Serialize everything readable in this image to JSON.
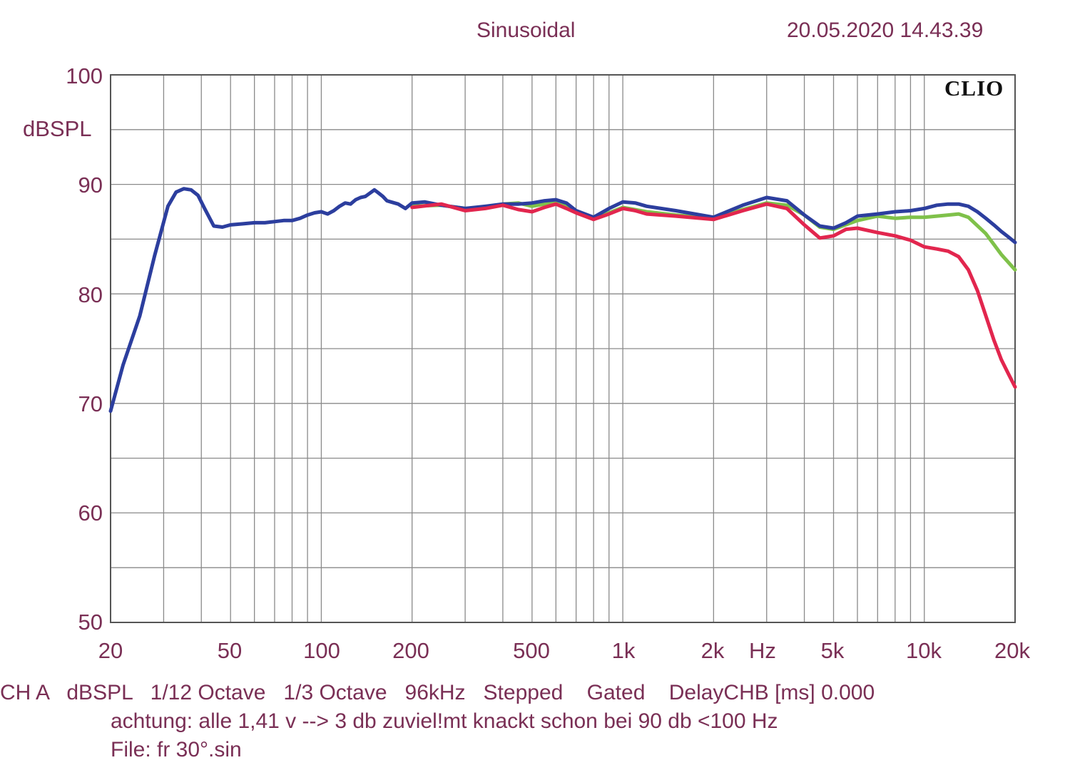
{
  "header": {
    "title": "Sinusoidal",
    "datetime": "20.05.2020 14.43.39",
    "brand": "CLIO"
  },
  "footer": {
    "settings": "CH A   dBSPL   1/12 Octave   1/3 Octave   96kHz   Stepped    Gated    DelayCHB [ms] 0.000",
    "note": "achtung: alle 1,41 v --> 3 db zuviel!mt knackt schon bei 90 db <100 Hz",
    "file": "File: fr 30°.sin"
  },
  "chart_data": {
    "type": "line",
    "xscale": "log",
    "xlim": [
      20,
      20000
    ],
    "ylim": [
      50,
      100
    ],
    "ylabel": "dBSPL",
    "xlabel": "Hz",
    "grid": true,
    "x_ticks": [
      {
        "v": 20,
        "label": "20"
      },
      {
        "v": 50,
        "label": "50"
      },
      {
        "v": 100,
        "label": "100"
      },
      {
        "v": 200,
        "label": "200"
      },
      {
        "v": 500,
        "label": "500"
      },
      {
        "v": 1000,
        "label": "1k"
      },
      {
        "v": 2000,
        "label": "2k"
      },
      {
        "v": 5000,
        "label": "5k"
      },
      {
        "v": 10000,
        "label": "10k"
      },
      {
        "v": 20000,
        "label": "20k"
      }
    ],
    "y_ticks": [
      {
        "v": 100,
        "label": "100"
      },
      {
        "v": 90,
        "label": "90"
      },
      {
        "v": 80,
        "label": "80"
      },
      {
        "v": 70,
        "label": "70"
      },
      {
        "v": 60,
        "label": "60"
      },
      {
        "v": 50,
        "label": "50"
      }
    ],
    "series": [
      {
        "color": "#7fc14a",
        "x": [
          200,
          250,
          300,
          350,
          400,
          450,
          500,
          550,
          600,
          700,
          800,
          900,
          1000,
          1200,
          1500,
          2000,
          2500,
          3000,
          3500,
          4000,
          4500,
          5000,
          6000,
          7000,
          8000,
          9000,
          10000,
          11000,
          12000,
          13000,
          14000,
          16000,
          18000,
          20000
        ],
        "y": [
          88.0,
          88.1,
          87.8,
          87.9,
          88.2,
          88.3,
          88.0,
          88.2,
          88.4,
          87.6,
          86.9,
          87.4,
          87.9,
          87.5,
          87.2,
          86.9,
          87.7,
          88.3,
          88.1,
          87.2,
          86.1,
          85.9,
          86.7,
          87.1,
          86.9,
          87.0,
          87.0,
          87.1,
          87.2,
          87.3,
          87.0,
          85.5,
          83.6,
          82.2
        ]
      },
      {
        "color": "#2c3e9e",
        "x": [
          20,
          22,
          25,
          28,
          31,
          33,
          35,
          37,
          39,
          41,
          44,
          47,
          50,
          55,
          60,
          65,
          70,
          75,
          80,
          85,
          90,
          95,
          100,
          105,
          110,
          115,
          120,
          125,
          130,
          135,
          140,
          145,
          150,
          155,
          160,
          165,
          170,
          180,
          190,
          200,
          220,
          250,
          300,
          350,
          400,
          450,
          500,
          550,
          600,
          650,
          700,
          800,
          900,
          1000,
          1100,
          1200,
          1500,
          2000,
          2500,
          3000,
          3500,
          4000,
          4500,
          5000,
          5500,
          6000,
          7000,
          8000,
          9000,
          10000,
          11000,
          12000,
          13000,
          14000,
          15000,
          16000,
          17000,
          18000,
          19000,
          20000
        ],
        "y": [
          69.3,
          73.5,
          78.0,
          83.5,
          88.0,
          89.3,
          89.6,
          89.5,
          89.0,
          87.8,
          86.2,
          86.1,
          86.3,
          86.4,
          86.5,
          86.5,
          86.6,
          86.7,
          86.7,
          86.9,
          87.2,
          87.4,
          87.5,
          87.3,
          87.6,
          88.0,
          88.3,
          88.2,
          88.6,
          88.8,
          88.9,
          89.2,
          89.5,
          89.2,
          88.9,
          88.5,
          88.4,
          88.2,
          87.8,
          88.3,
          88.4,
          88.1,
          87.8,
          88.0,
          88.2,
          88.2,
          88.3,
          88.5,
          88.6,
          88.3,
          87.6,
          87.0,
          87.8,
          88.4,
          88.3,
          88.0,
          87.6,
          87.0,
          88.1,
          88.8,
          88.5,
          87.2,
          86.2,
          86.0,
          86.5,
          87.1,
          87.3,
          87.5,
          87.6,
          87.8,
          88.1,
          88.2,
          88.2,
          88.0,
          87.5,
          86.9,
          86.3,
          85.7,
          85.2,
          84.7
        ]
      },
      {
        "color": "#e2264e",
        "x": [
          200,
          250,
          300,
          350,
          400,
          450,
          500,
          550,
          600,
          650,
          700,
          800,
          900,
          1000,
          1100,
          1200,
          1500,
          2000,
          2500,
          3000,
          3500,
          4000,
          4500,
          5000,
          5500,
          6000,
          7000,
          8000,
          9000,
          10000,
          11000,
          12000,
          13000,
          14000,
          15000,
          16000,
          17000,
          18000,
          19000,
          20000
        ],
        "y": [
          87.9,
          88.2,
          87.6,
          87.8,
          88.1,
          87.7,
          87.5,
          87.9,
          88.2,
          87.8,
          87.4,
          86.8,
          87.3,
          87.8,
          87.6,
          87.3,
          87.1,
          86.8,
          87.6,
          88.2,
          87.8,
          86.3,
          85.1,
          85.3,
          85.9,
          86.0,
          85.6,
          85.3,
          84.9,
          84.3,
          84.1,
          83.9,
          83.4,
          82.2,
          80.3,
          78.0,
          75.8,
          74.0,
          72.7,
          71.5
        ]
      }
    ]
  }
}
